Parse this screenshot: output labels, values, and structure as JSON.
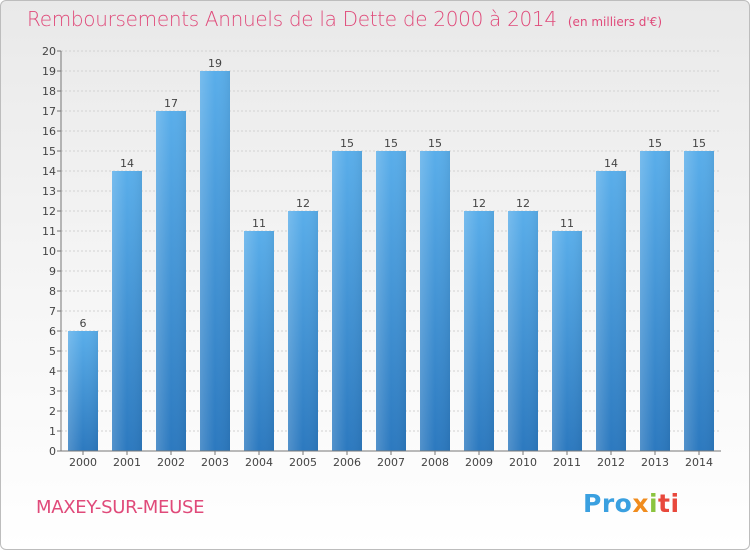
{
  "chart_data": {
    "type": "bar",
    "title": "Remboursements Annuels de la Dette de 2000 à 2014",
    "unit_note": "(en milliers d'€)",
    "categories": [
      "2000",
      "2001",
      "2002",
      "2003",
      "2004",
      "2005",
      "2006",
      "2007",
      "2008",
      "2009",
      "2010",
      "2011",
      "2012",
      "2013",
      "2014"
    ],
    "values": [
      6,
      14,
      17,
      19,
      11,
      12,
      15,
      15,
      15,
      12,
      12,
      11,
      14,
      15,
      15
    ],
    "ylim": [
      0,
      20
    ],
    "yticks": [
      "0",
      "1",
      "2",
      "3",
      "4",
      "5",
      "6",
      "7",
      "8",
      "9",
      "10",
      "11",
      "12",
      "13",
      "14",
      "15",
      "16",
      "17",
      "18",
      "19",
      "20"
    ],
    "bar_color": "#3f93d8",
    "grid": true
  },
  "footer": {
    "commune": "MAXEY-SUR-MEUSE",
    "logo": {
      "p1": "Pro",
      "p2": "x",
      "p3": "i",
      "p4": "ti"
    }
  }
}
